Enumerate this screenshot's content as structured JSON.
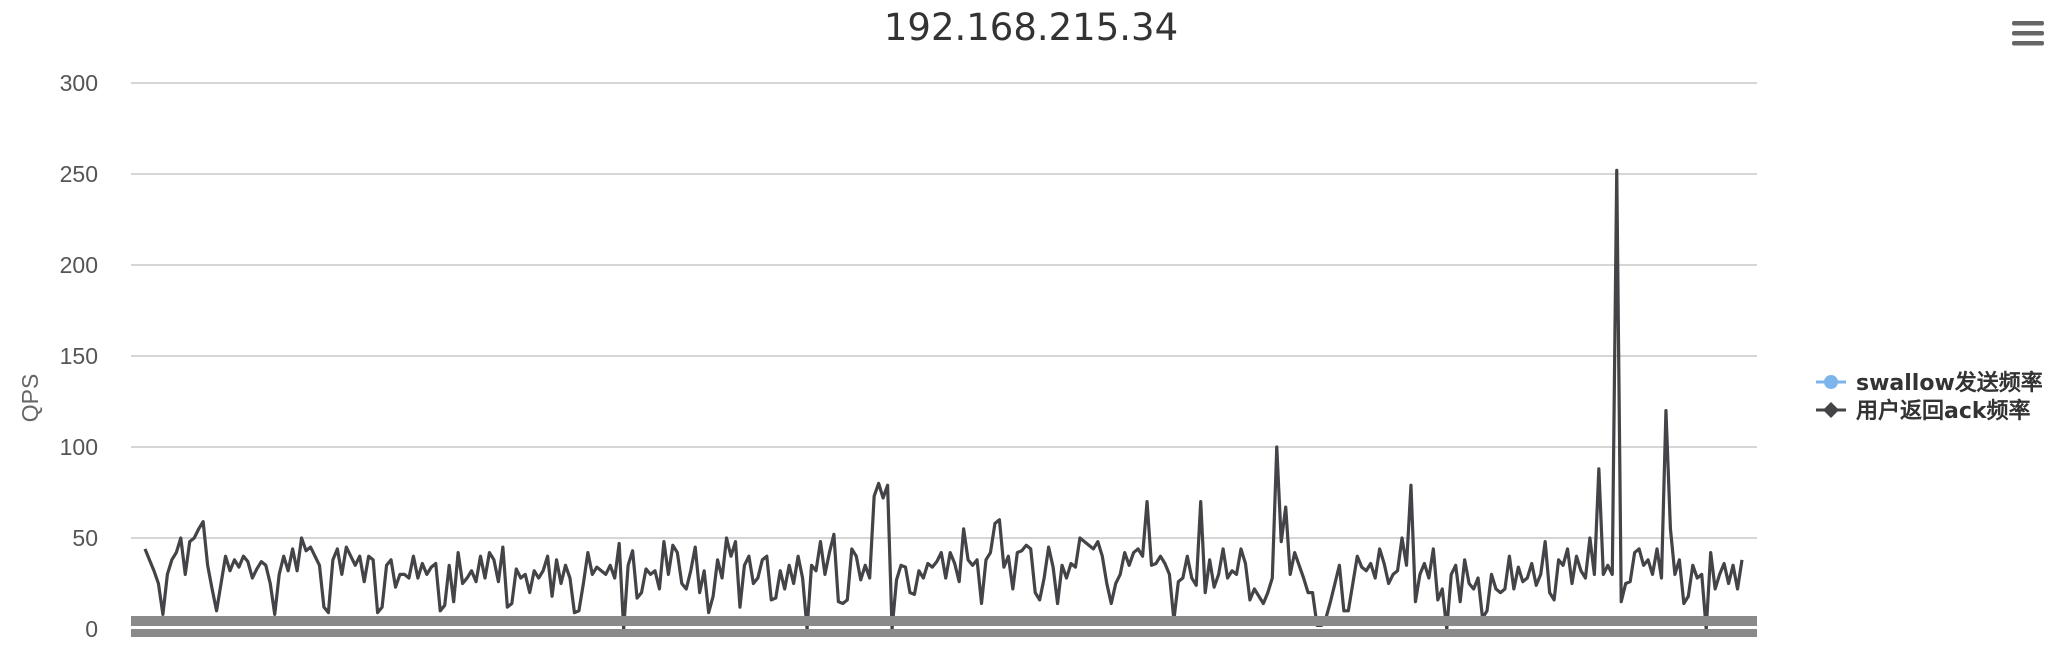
{
  "chart_data": {
    "type": "line",
    "title": "192.168.215.34",
    "xlabel": "",
    "ylabel": "QPS",
    "ylim": [
      0,
      300
    ],
    "yticks": [
      0,
      50,
      100,
      150,
      200,
      250,
      300
    ],
    "grid": true,
    "legend_position": "right",
    "series": [
      {
        "name": "swallow发送频率",
        "color": "#7cb5ec",
        "marker": "circle",
        "values": [
          5,
          5,
          5,
          5,
          5,
          5,
          5,
          5,
          5,
          5,
          5,
          5,
          5,
          5,
          5,
          5,
          5,
          5,
          5,
          5,
          5,
          5,
          5,
          5,
          5,
          5,
          5,
          5,
          5,
          5,
          5,
          5,
          5,
          5,
          5,
          5,
          5,
          5,
          5,
          5,
          5,
          5,
          5,
          5,
          5,
          5,
          5,
          5,
          5,
          5,
          5,
          5,
          5,
          5,
          5,
          5,
          5,
          5,
          5,
          5,
          5,
          5,
          5,
          5,
          5,
          5,
          5,
          5,
          5,
          5,
          5,
          5,
          5,
          5,
          5,
          5,
          5,
          5,
          5,
          5,
          5,
          5,
          5,
          5,
          5,
          5,
          5,
          5,
          5,
          5,
          5,
          5,
          5,
          5,
          5,
          5,
          5,
          5,
          5,
          5,
          5,
          5,
          5,
          5,
          5,
          5,
          5,
          5,
          5,
          5,
          5,
          5,
          5,
          5,
          5,
          5,
          5,
          5,
          5,
          5,
          5,
          5,
          5,
          5,
          5,
          5,
          5,
          5,
          5,
          5,
          5,
          5,
          5,
          5,
          5,
          5,
          5,
          5,
          5,
          5,
          5,
          5,
          5,
          5,
          5,
          5,
          5,
          5,
          5,
          5,
          5,
          5,
          5,
          5,
          5,
          5,
          5,
          5,
          5,
          5,
          5,
          5,
          5,
          5,
          5,
          5,
          5,
          5,
          5,
          5,
          5,
          5,
          5,
          5,
          5,
          5,
          5,
          5,
          5,
          5,
          5,
          5,
          5,
          5,
          5,
          5,
          5,
          5,
          5,
          5,
          5,
          5,
          5,
          5,
          5,
          5,
          5,
          5,
          5,
          5,
          5,
          5,
          5,
          5,
          5,
          5,
          5,
          5,
          5,
          5,
          5,
          5,
          5,
          5,
          5,
          5,
          5,
          5,
          5,
          5,
          5,
          5,
          5,
          5,
          5,
          5,
          5,
          5,
          5,
          5,
          5,
          5,
          5,
          5,
          5,
          5,
          5,
          5,
          5,
          5,
          5,
          5,
          5,
          5,
          5,
          5,
          5,
          5,
          5,
          5,
          5,
          5,
          5,
          5,
          5,
          5,
          5,
          5,
          5,
          5,
          5,
          5,
          5,
          5,
          5,
          5,
          5,
          5,
          5,
          5,
          5,
          5,
          5,
          5,
          5,
          5,
          5,
          5,
          5,
          5,
          5,
          5,
          5,
          5,
          5,
          5,
          5,
          5,
          5,
          5,
          5,
          5,
          5,
          5,
          5,
          5,
          5,
          5,
          5,
          5,
          5,
          5,
          5,
          5,
          5,
          5,
          5,
          5,
          5,
          5,
          5,
          5,
          5,
          5,
          5,
          5,
          5,
          5,
          5,
          5,
          5,
          5,
          5,
          5
        ]
      },
      {
        "name": "用户返回ack频率",
        "color": "#434348",
        "marker": "diamond",
        "values": [
          44,
          38,
          32,
          25,
          8,
          30,
          38,
          42,
          50,
          30,
          48,
          50,
          55,
          59,
          35,
          22,
          10,
          25,
          40,
          32,
          38,
          34,
          40,
          37,
          28,
          33,
          37,
          35,
          25,
          8,
          30,
          40,
          32,
          44,
          32,
          50,
          43,
          45,
          40,
          35,
          12,
          9,
          38,
          44,
          30,
          45,
          40,
          35,
          40,
          26,
          40,
          38,
          9,
          12,
          35,
          38,
          23,
          30,
          30,
          28,
          40,
          28,
          36,
          30,
          34,
          36,
          10,
          13,
          35,
          15,
          42,
          25,
          28,
          32,
          26,
          40,
          28,
          42,
          38,
          26,
          45,
          12,
          14,
          33,
          28,
          30,
          20,
          32,
          28,
          32,
          40,
          18,
          38,
          25,
          35,
          28,
          9,
          10,
          25,
          42,
          30,
          34,
          32,
          30,
          35,
          28,
          47,
          0,
          35,
          43,
          17,
          20,
          33,
          30,
          32,
          22,
          48,
          30,
          46,
          42,
          25,
          22,
          32,
          45,
          20,
          32,
          9,
          18,
          38,
          28,
          50,
          40,
          48,
          12,
          35,
          40,
          25,
          28,
          38,
          40,
          16,
          17,
          32,
          22,
          35,
          25,
          40,
          28,
          0,
          35,
          32,
          48,
          30,
          42,
          52,
          15,
          14,
          16,
          44,
          40,
          27,
          35,
          28,
          73,
          80,
          72,
          79,
          0,
          27,
          35,
          34,
          20,
          19,
          32,
          28,
          36,
          34,
          37,
          42,
          28,
          42,
          36,
          26,
          55,
          38,
          35,
          38,
          14,
          38,
          42,
          58,
          60,
          34,
          40,
          22,
          42,
          43,
          46,
          44,
          20,
          16,
          28,
          45,
          34,
          14,
          35,
          28,
          36,
          34,
          50,
          48,
          46,
          44,
          48,
          40,
          25,
          14,
          25,
          30,
          42,
          35,
          42,
          44,
          40,
          70,
          35,
          36,
          40,
          36,
          30,
          5,
          26,
          28,
          40,
          28,
          24,
          70,
          20,
          38,
          23,
          30,
          44,
          28,
          32,
          30,
          44,
          36,
          16,
          22,
          18,
          14,
          20,
          28,
          100,
          48,
          67,
          30,
          42,
          35,
          28,
          20,
          20,
          2,
          2,
          6,
          15,
          25,
          35,
          10,
          10,
          25,
          40,
          34,
          32,
          36,
          28,
          44,
          36,
          25,
          30,
          32,
          50,
          35,
          79,
          15,
          30,
          36,
          28,
          44,
          16,
          22,
          0,
          30,
          35,
          15,
          38,
          25,
          22,
          28,
          6,
          10,
          30,
          22,
          20,
          22,
          40,
          22,
          34,
          26,
          28,
          36,
          24,
          30,
          48,
          20,
          16,
          38,
          35,
          44,
          25,
          40,
          32,
          28,
          50,
          30,
          88,
          30,
          35,
          30,
          252,
          15,
          25,
          26,
          42,
          44,
          35,
          38,
          30,
          44,
          28,
          120,
          55,
          30,
          38,
          14,
          18,
          35,
          28,
          30,
          0,
          42,
          22,
          30,
          36,
          25,
          35,
          22,
          38
        ]
      }
    ]
  },
  "menu_icon": "hamburger-menu-icon"
}
